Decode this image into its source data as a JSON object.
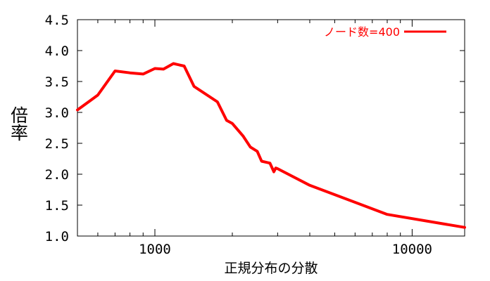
{
  "chart_data": {
    "type": "line",
    "xlabel": "正規分布の分散",
    "ylabel": "倍率",
    "xscale": "log",
    "xlim": [
      500,
      16000
    ],
    "ylim": [
      1.0,
      4.5
    ],
    "xticks": [
      1000,
      10000
    ],
    "xtick_labels": [
      "1000",
      "10000"
    ],
    "yticks": [
      1.0,
      1.5,
      2.0,
      2.5,
      3.0,
      3.5,
      4.0,
      4.5
    ],
    "ytick_labels": [
      "1.0",
      "1.5",
      "2.0",
      "2.5",
      "3.0",
      "3.5",
      "4.0",
      "4.5"
    ],
    "grid": false,
    "legend_position": "top-right",
    "series": [
      {
        "name": "ノード数=400",
        "color": "#ff0000",
        "x": [
          500,
          600,
          700,
          800,
          900,
          1000,
          1080,
          1180,
          1300,
          1420,
          1750,
          1900,
          2000,
          2200,
          2350,
          2500,
          2600,
          2800,
          2900,
          2950,
          3000,
          4000,
          8000,
          16000
        ],
        "y": [
          3.04,
          3.28,
          3.67,
          3.64,
          3.62,
          3.71,
          3.7,
          3.79,
          3.75,
          3.42,
          3.17,
          2.87,
          2.82,
          2.62,
          2.44,
          2.37,
          2.21,
          2.18,
          2.04,
          2.1,
          2.09,
          1.82,
          1.35,
          1.14
        ]
      }
    ]
  }
}
